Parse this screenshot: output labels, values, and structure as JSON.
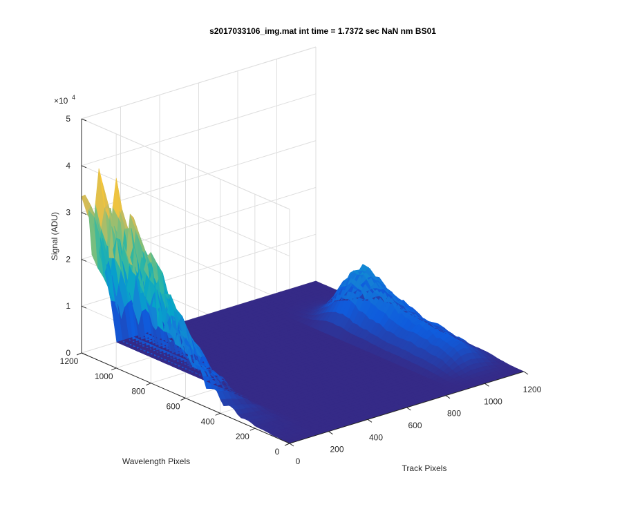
{
  "chart_data": {
    "type": "surface",
    "title": "s2017033106_img.mat int time = 1.7372 sec  NaN nm BS01",
    "xlabel": "Track Pixels",
    "ylabel": "Wavelength Pixels",
    "zlabel": "Signal (ADU)",
    "z_exponent_label": "×10",
    "z_exponent": "4",
    "xlim": [
      0,
      1200
    ],
    "ylim": [
      0,
      1200
    ],
    "zlim": [
      0,
      50000
    ],
    "x_ticks": [
      0,
      200,
      400,
      600,
      800,
      1000,
      1200
    ],
    "y_ticks": [
      0,
      200,
      400,
      600,
      800,
      1000,
      1200
    ],
    "z_ticks": [
      0,
      10000,
      20000,
      30000,
      40000,
      50000
    ],
    "z_tick_labels": [
      "0",
      "1",
      "2",
      "3",
      "4",
      "5"
    ],
    "grid": true,
    "colormap": "parula",
    "colormap_stops": [
      "#352a87",
      "#0f5cdd",
      "#1481d6",
      "#06a4ca",
      "#2eb7a4",
      "#87bf77",
      "#d1bb59",
      "#fec832",
      "#f9fb0e"
    ],
    "peak_signal_approx": 40000,
    "features": [
      {
        "track_center": 30,
        "wavelength_range": [
          100,
          1150
        ],
        "peak_signal": 40000
      },
      {
        "track_center": 1050,
        "wavelength_range": [
          100,
          850
        ],
        "peak_signal": 12000
      }
    ]
  }
}
